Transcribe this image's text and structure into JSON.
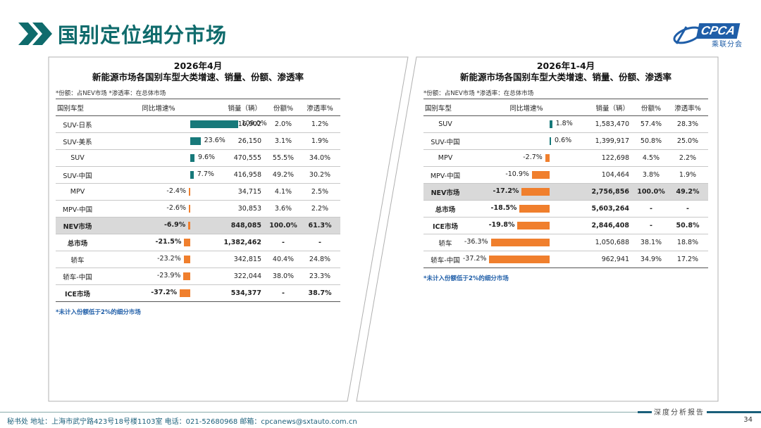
{
  "page": {
    "title": "国别定位细分市场",
    "page_number": "34",
    "footer_text": "秘书处   地址：上海市武宁路423号18号楼1103室  电话：021-52680968   邮箱：cpcanews@sxtauto.com.cn",
    "footer_tag": "深度分析报告",
    "logo_text": "CPCA",
    "logo_sub": "乘联分会"
  },
  "colors": {
    "accent": "#0f6b6c",
    "positive_bar": "#17797a",
    "negative_bar": "#f07f2d",
    "highlight_row": "#d9d9d9"
  },
  "tables": [
    {
      "title_line1": "2026年4月",
      "title_line2": "新能源市场各国别车型大类增速、销量、份额、渗透率",
      "note": "*份额：占NEV市场   *渗透率：在总体市场",
      "headers": [
        "国别车型",
        "同比增速%",
        "销量（辆）",
        "份额%",
        "渗透率%"
      ],
      "rows": [
        {
          "name": "SUV-日系",
          "growth": 109.0,
          "growth_label": "109.0%",
          "volume": "16,902",
          "share": "2.0%",
          "penetration": "1.2%",
          "style": ""
        },
        {
          "name": "SUV-美系",
          "growth": 23.6,
          "growth_label": "23.6%",
          "volume": "26,150",
          "share": "3.1%",
          "penetration": "1.9%",
          "style": ""
        },
        {
          "name": "SUV",
          "growth": 9.6,
          "growth_label": "9.6%",
          "volume": "470,555",
          "share": "55.5%",
          "penetration": "34.0%",
          "style": ""
        },
        {
          "name": "SUV-中国",
          "growth": 7.7,
          "growth_label": "7.7%",
          "volume": "416,958",
          "share": "49.2%",
          "penetration": "30.2%",
          "style": ""
        },
        {
          "name": "MPV",
          "growth": -2.4,
          "growth_label": "-2.4%",
          "volume": "34,715",
          "share": "4.1%",
          "penetration": "2.5%",
          "style": ""
        },
        {
          "name": "MPV-中国",
          "growth": -2.6,
          "growth_label": "-2.6%",
          "volume": "30,853",
          "share": "3.6%",
          "penetration": "2.2%",
          "style": ""
        },
        {
          "name": "NEV市场",
          "growth": -6.9,
          "growth_label": "-6.9%",
          "volume": "848,085",
          "share": "100.0%",
          "penetration": "61.3%",
          "style": "hl"
        },
        {
          "name": "总市场",
          "growth": -21.5,
          "growth_label": "-21.5%",
          "volume": "1,382,462",
          "share": "-",
          "penetration": "-",
          "style": "bold"
        },
        {
          "name": "轿车",
          "growth": -23.2,
          "growth_label": "-23.2%",
          "volume": "342,815",
          "share": "40.4%",
          "penetration": "24.8%",
          "style": ""
        },
        {
          "name": "轿车-中国",
          "growth": -23.9,
          "growth_label": "-23.9%",
          "volume": "322,044",
          "share": "38.0%",
          "penetration": "23.3%",
          "style": ""
        },
        {
          "name": "ICE市场",
          "growth": -37.2,
          "growth_label": "-37.2%",
          "volume": "534,377",
          "share": "-",
          "penetration": "38.7%",
          "style": "bold"
        }
      ],
      "footnote": "*未计入份额低于2%的细分市场"
    },
    {
      "title_line1": "2026年1-4月",
      "title_line2": "新能源市场各国别车型大类增速、销量、份额、渗透率",
      "note": "*份额：占NEV市场   *渗透率：在总体市场",
      "headers": [
        "国别车型",
        "同比增速%",
        "销量（辆）",
        "份额%",
        "渗透率%"
      ],
      "rows": [
        {
          "name": "SUV",
          "growth": 1.8,
          "growth_label": "1.8%",
          "volume": "1,583,470",
          "share": "57.4%",
          "penetration": "28.3%",
          "style": ""
        },
        {
          "name": "SUV-中国",
          "growth": 0.6,
          "growth_label": "0.6%",
          "volume": "1,399,917",
          "share": "50.8%",
          "penetration": "25.0%",
          "style": ""
        },
        {
          "name": "MPV",
          "growth": -2.7,
          "growth_label": "-2.7%",
          "volume": "122,698",
          "share": "4.5%",
          "penetration": "2.2%",
          "style": ""
        },
        {
          "name": "MPV-中国",
          "growth": -10.9,
          "growth_label": "-10.9%",
          "volume": "104,464",
          "share": "3.8%",
          "penetration": "1.9%",
          "style": ""
        },
        {
          "name": "NEV市场",
          "growth": -17.2,
          "growth_label": "-17.2%",
          "volume": "2,756,856",
          "share": "100.0%",
          "penetration": "49.2%",
          "style": "hl"
        },
        {
          "name": "总市场",
          "growth": -18.5,
          "growth_label": "-18.5%",
          "volume": "5,603,264",
          "share": "-",
          "penetration": "-",
          "style": "bold"
        },
        {
          "name": "ICE市场",
          "growth": -19.8,
          "growth_label": "-19.8%",
          "volume": "2,846,408",
          "share": "-",
          "penetration": "50.8%",
          "style": "bold"
        },
        {
          "name": "轿车",
          "growth": -36.3,
          "growth_label": "-36.3%",
          "volume": "1,050,688",
          "share": "38.1%",
          "penetration": "18.8%",
          "style": ""
        },
        {
          "name": "轿车-中国",
          "growth": -37.2,
          "growth_label": "-37.2%",
          "volume": "962,941",
          "share": "34.9%",
          "penetration": "17.2%",
          "style": ""
        }
      ],
      "footnote": "*未计入份额低于2%的细分市场"
    }
  ]
}
